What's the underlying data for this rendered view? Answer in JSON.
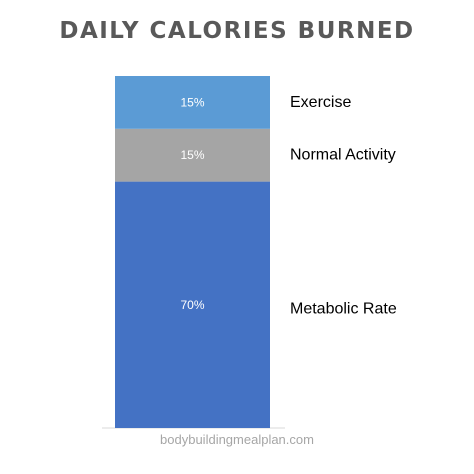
{
  "chart_data": {
    "type": "bar",
    "stacked": true,
    "title": "DAILY CALORIES BURNED",
    "categories": [
      ""
    ],
    "ylim": [
      0,
      100
    ],
    "grid": false,
    "value_format": "percent",
    "series": [
      {
        "name": "Metabolic Rate",
        "values": [
          70
        ],
        "color": "#4472c4"
      },
      {
        "name": "Normal Activity",
        "values": [
          15
        ],
        "color": "#a5a5a5"
      },
      {
        "name": "Exercise",
        "values": [
          15
        ],
        "color": "#5b9bd5"
      }
    ],
    "data_labels": [
      "70%",
      "15%",
      "15%"
    ],
    "colors": {
      "title": "#595959",
      "axis": "#d9d9d9",
      "label_text": "#ffffff",
      "legend_text": "#000000"
    }
  },
  "watermark": "bodybuildingmealplan.com"
}
